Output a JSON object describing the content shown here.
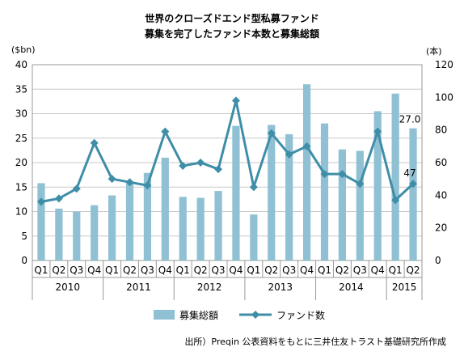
{
  "chart_data": {
    "type": "bar+line",
    "title": "世界のクローズドエンド型私募ファンド",
    "subtitle": "募集を完了したファンド本数と募集総額",
    "y_left_unit": "($bn)",
    "y_right_unit": "(本)",
    "y_left_lim": [
      0,
      40
    ],
    "y_left_ticks": [
      "0",
      "5",
      "10",
      "15",
      "20",
      "25",
      "30",
      "35",
      "40"
    ],
    "y_right_lim": [
      0,
      120
    ],
    "y_right_ticks": [
      "0",
      "20",
      "40",
      "60",
      "80",
      "100",
      "120"
    ],
    "categories": [
      "Q1",
      "Q2",
      "Q3",
      "Q4",
      "Q1",
      "Q2",
      "Q3",
      "Q4",
      "Q1",
      "Q2",
      "Q3",
      "Q4",
      "Q1",
      "Q2",
      "Q3",
      "Q4",
      "Q1",
      "Q2",
      "Q3",
      "Q4",
      "Q1",
      "Q2"
    ],
    "years": [
      {
        "label": "2010",
        "count": 4
      },
      {
        "label": "2011",
        "count": 4
      },
      {
        "label": "2012",
        "count": 4
      },
      {
        "label": "2013",
        "count": 4
      },
      {
        "label": "2014",
        "count": 4
      },
      {
        "label": "2015",
        "count": 2
      }
    ],
    "series": [
      {
        "name": "募集総額",
        "type": "bar",
        "axis": "left",
        "color": "#8fc0d3",
        "values": [
          15.8,
          10.6,
          10.0,
          11.3,
          13.3,
          15.8,
          17.9,
          21.0,
          13.0,
          12.8,
          14.2,
          27.5,
          9.4,
          27.7,
          25.8,
          36.0,
          28.0,
          22.7,
          22.4,
          30.5,
          34.1,
          27.0
        ]
      },
      {
        "name": "ファンド数",
        "type": "line",
        "axis": "right",
        "color": "#3e8ea8",
        "values": [
          36,
          38,
          44,
          72,
          50,
          48,
          46,
          79,
          58,
          60,
          56,
          98,
          45,
          78,
          65,
          70,
          53,
          53,
          47,
          79,
          37,
          47
        ]
      }
    ],
    "data_labels": [
      {
        "series": 0,
        "index": 21,
        "text": "27.0"
      },
      {
        "series": 1,
        "index": 21,
        "text": "47"
      }
    ],
    "grid": true,
    "legend": "bottom"
  },
  "source": "出所）Preqin 公表資料をもとに三井住友トラスト基礎研究所作成"
}
